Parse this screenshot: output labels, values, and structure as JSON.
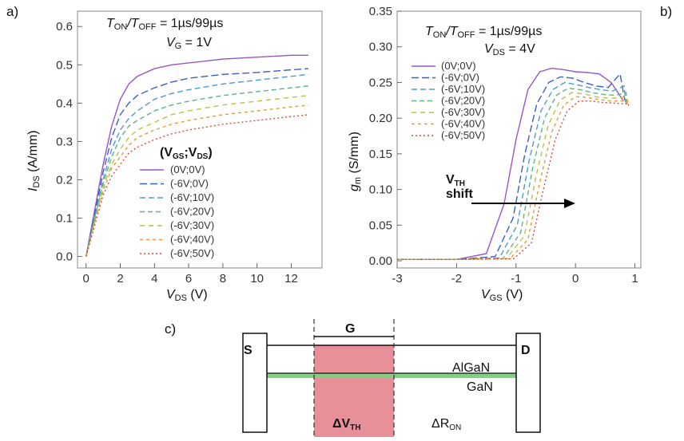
{
  "chart_data": [
    {
      "panel_label": "a)",
      "type": "line",
      "annotation_line1": "T",
      "annotation_line1_sub_on": "ON",
      "annotation_line1_mid": "/T",
      "annotation_line1_sub_off": "OFF",
      "annotation_line1_tail": " = 1µs/99µs",
      "annotation_line2": "V",
      "annotation_line2_sub": "G",
      "annotation_line2_tail": " = 1V",
      "xlabel": "V",
      "xlabel_sub": "DS",
      "xlabel_unit": " (V)",
      "ylabel": "I",
      "ylabel_sub": "DS",
      "ylabel_unit": " (A/mm)",
      "xlim": [
        -0.5,
        13.8
      ],
      "ylim": [
        -0.03,
        0.64
      ],
      "xticks": [
        "0",
        "2",
        "4",
        "6",
        "8",
        "10",
        "12"
      ],
      "yticks": [
        "0.0",
        "0.1",
        "0.2",
        "0.3",
        "0.4",
        "0.5",
        "0.6"
      ],
      "legend_title": "(V",
      "legend_title_sub1": "GS",
      "legend_title_mid": ";V",
      "legend_title_sub2": "DS",
      "legend_title_tail": ")",
      "x": [
        0,
        0.5,
        1,
        1.5,
        2,
        2.5,
        3,
        4,
        5,
        6,
        8,
        10,
        12,
        13
      ],
      "series": [
        {
          "name": "(0V;0V)",
          "color": "#9a55c4",
          "dash": "",
          "values": [
            0,
            0.12,
            0.24,
            0.34,
            0.41,
            0.45,
            0.47,
            0.49,
            0.5,
            0.505,
            0.515,
            0.52,
            0.525,
            0.525
          ]
        },
        {
          "name": "(-6V;0V)",
          "color": "#3a5fc8",
          "dash": "9,4",
          "values": [
            0,
            0.11,
            0.22,
            0.31,
            0.37,
            0.4,
            0.42,
            0.44,
            0.455,
            0.465,
            0.475,
            0.48,
            0.487,
            0.49
          ]
        },
        {
          "name": "(-6V;10V)",
          "color": "#4f9ad0",
          "dash": "7,4",
          "values": [
            0,
            0.1,
            0.2,
            0.28,
            0.33,
            0.36,
            0.38,
            0.41,
            0.425,
            0.435,
            0.45,
            0.46,
            0.47,
            0.475
          ]
        },
        {
          "name": "(-6V;20V)",
          "color": "#5cb48a",
          "dash": "6,4",
          "values": [
            0,
            0.1,
            0.19,
            0.26,
            0.31,
            0.34,
            0.355,
            0.38,
            0.395,
            0.405,
            0.42,
            0.43,
            0.44,
            0.445
          ]
        },
        {
          "name": "(-6V;30V)",
          "color": "#b9c244",
          "dash": "6,5",
          "values": [
            0,
            0.09,
            0.18,
            0.24,
            0.28,
            0.31,
            0.33,
            0.35,
            0.37,
            0.38,
            0.395,
            0.405,
            0.415,
            0.42
          ]
        },
        {
          "name": "(-6V;40V)",
          "color": "#e39a3f",
          "dash": "4,4",
          "values": [
            0,
            0.09,
            0.17,
            0.23,
            0.26,
            0.29,
            0.31,
            0.33,
            0.345,
            0.355,
            0.37,
            0.38,
            0.39,
            0.395
          ]
        },
        {
          "name": "(-6V;50V)",
          "color": "#d94a3c",
          "dash": "2,3",
          "values": [
            0,
            0.08,
            0.16,
            0.21,
            0.24,
            0.27,
            0.285,
            0.305,
            0.32,
            0.33,
            0.345,
            0.355,
            0.365,
            0.37
          ]
        }
      ]
    },
    {
      "panel_label": "b)",
      "type": "line",
      "annotation_line1": "T",
      "annotation_line1_sub_on": "ON",
      "annotation_line1_mid": "/T",
      "annotation_line1_sub_off": "OFF",
      "annotation_line1_tail": " = 1µs/99µs",
      "annotation_line2": "V",
      "annotation_line2_sub": "DS",
      "annotation_line2_tail": " = 4V",
      "arrow_label_line1": "V",
      "arrow_label_line1_sub": "TH",
      "arrow_label_line2": "shift",
      "xlabel": "V",
      "xlabel_sub": "GS",
      "xlabel_unit": " (V)",
      "ylabel": "g",
      "ylabel_sub": "m",
      "ylabel_unit": " (S/mm)",
      "xlim": [
        -3,
        1.1
      ],
      "ylim": [
        -0.01,
        0.35
      ],
      "xticks": [
        "-3",
        "-2",
        "-1",
        "0",
        "1"
      ],
      "yticks": [
        "0.00",
        "0.05",
        "0.10",
        "0.15",
        "0.20",
        "0.25",
        "0.30",
        "0.35"
      ],
      "x_shift_base": [
        -3,
        -2,
        -1.5,
        -1.2,
        -1.0,
        -0.8,
        -0.6,
        -0.4,
        -0.2,
        0,
        0.2,
        0.4,
        0.6,
        0.8
      ],
      "series": [
        {
          "name": "(0V;0V)",
          "color": "#9a55c4",
          "dash": "",
          "shift": 0.0,
          "values": [
            0.002,
            0.002,
            0.01,
            0.08,
            0.17,
            0.24,
            0.265,
            0.27,
            0.268,
            0.265,
            0.264,
            0.262,
            0.25,
            0.225
          ]
        },
        {
          "name": "(-6V;0V)",
          "color": "#3a5fc8",
          "dash": "9,4",
          "shift": 0.15,
          "values": [
            0.002,
            0.002,
            0.006,
            0.06,
            0.15,
            0.22,
            0.25,
            0.258,
            0.256,
            0.25,
            0.245,
            0.243,
            0.262,
            0.225
          ]
        },
        {
          "name": "(-6V;10V)",
          "color": "#4f9ad0",
          "dash": "7,4",
          "shift": 0.22,
          "values": [
            0.002,
            0.002,
            0.004,
            0.05,
            0.14,
            0.21,
            0.24,
            0.25,
            0.247,
            0.243,
            0.24,
            0.238,
            0.245,
            0.222
          ]
        },
        {
          "name": "(-6V;20V)",
          "color": "#5cb48a",
          "dash": "6,4",
          "shift": 0.28,
          "values": [
            0.002,
            0.002,
            0.003,
            0.04,
            0.13,
            0.2,
            0.232,
            0.242,
            0.24,
            0.236,
            0.233,
            0.232,
            0.236,
            0.22
          ]
        },
        {
          "name": "(-6V;30V)",
          "color": "#b9c244",
          "dash": "6,5",
          "shift": 0.34,
          "values": [
            0.002,
            0.002,
            0.003,
            0.035,
            0.12,
            0.19,
            0.225,
            0.236,
            0.234,
            0.23,
            0.228,
            0.228,
            0.23,
            0.22
          ]
        },
        {
          "name": "(-6V;40V)",
          "color": "#e39a3f",
          "dash": "4,4",
          "shift": 0.4,
          "values": [
            0.002,
            0.002,
            0.003,
            0.03,
            0.11,
            0.18,
            0.218,
            0.23,
            0.229,
            0.226,
            0.224,
            0.224,
            0.225,
            0.218
          ]
        },
        {
          "name": "(-6V;50V)",
          "color": "#d94a3c",
          "dash": "2,3",
          "shift": 0.46,
          "values": [
            0.002,
            0.002,
            0.003,
            0.025,
            0.1,
            0.17,
            0.21,
            0.224,
            0.224,
            0.222,
            0.221,
            0.22,
            0.221,
            0.216
          ]
        }
      ]
    }
  ],
  "diagram": {
    "panel_label": "c)",
    "source_label": "S",
    "drain_label": "D",
    "gate_label": "G",
    "algan_label": "AlGaN",
    "gan_label": "GaN",
    "dvth_label": "ΔV",
    "dvth_sub": "TH",
    "dron_label": "ΔR",
    "dron_sub": "ON",
    "gate_color": "#e8909a",
    "channel_color": "#7fd07f"
  }
}
